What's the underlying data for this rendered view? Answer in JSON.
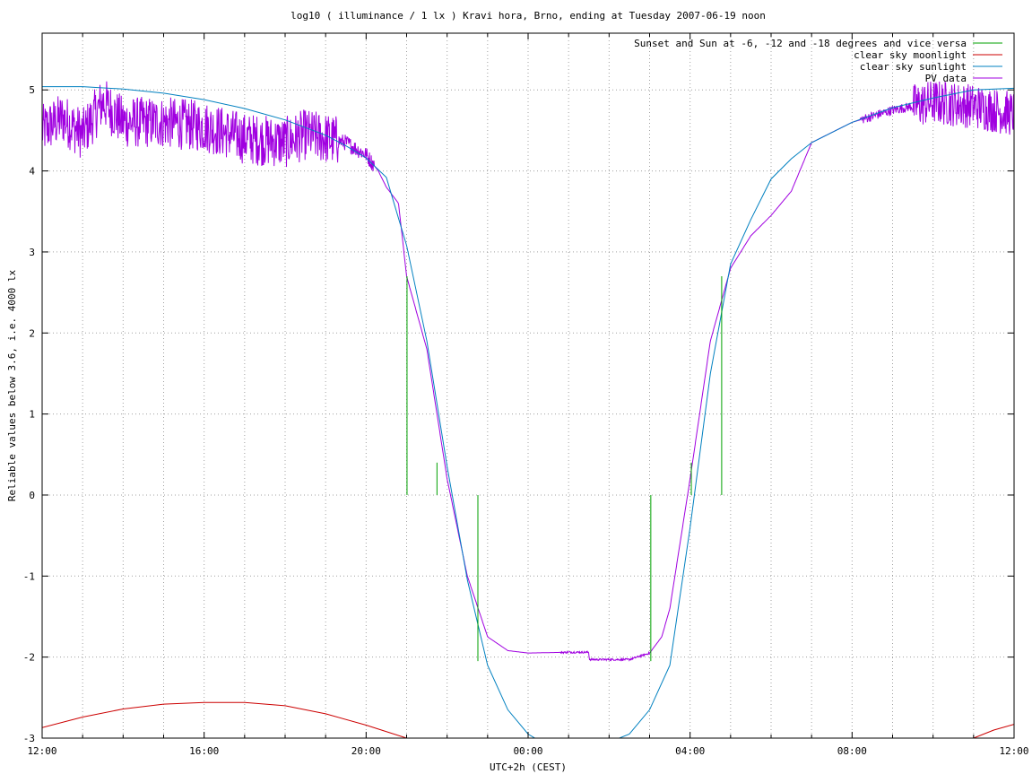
{
  "chart_data": {
    "type": "line",
    "title": "log10 ( illuminance / 1 lx ) Kravi hora, Brno, ending at Tuesday 2007-06-19 noon",
    "xlabel": "UTC+2h (CEST)",
    "ylabel": "Reliable values below 3.6, i.e. 4000 lx",
    "x_unit": "hours since 12:00 on 2007-06-18 (CEST)",
    "xlim": [
      0,
      24
    ],
    "ylim": [
      -3,
      5.7
    ],
    "x_ticks": [
      {
        "x": 0,
        "label": "12:00"
      },
      {
        "x": 4,
        "label": "16:00"
      },
      {
        "x": 8,
        "label": "20:00"
      },
      {
        "x": 12,
        "label": "00:00"
      },
      {
        "x": 16,
        "label": "04:00"
      },
      {
        "x": 20,
        "label": "08:00"
      },
      {
        "x": 24,
        "label": "12:00"
      }
    ],
    "y_ticks": [
      {
        "y": -3,
        "label": "-3"
      },
      {
        "y": -2,
        "label": "-2"
      },
      {
        "y": -1,
        "label": "-1"
      },
      {
        "y": 0,
        "label": "0"
      },
      {
        "y": 1,
        "label": "1"
      },
      {
        "y": 2,
        "label": "2"
      },
      {
        "y": 3,
        "label": "3"
      },
      {
        "y": 4,
        "label": "4"
      },
      {
        "y": 5,
        "label": "5"
      }
    ],
    "grid": true,
    "legend_position": "top-right",
    "series": [
      {
        "name": "Sunset and Sun at -6, -12 and -18 degrees and vice versa",
        "color": "#00a000",
        "style": "impulses",
        "points": [
          [
            9.01,
            2.7
          ],
          [
            9.75,
            0.4
          ],
          [
            10.76,
            -2.05
          ],
          [
            15.03,
            -2.05
          ],
          [
            16.03,
            0.4
          ],
          [
            16.78,
            2.7
          ]
        ]
      },
      {
        "name": "clear sky moonlight",
        "color": "#cc0000",
        "points": [
          [
            0.0,
            -2.87
          ],
          [
            1.0,
            -2.74
          ],
          [
            2.0,
            -2.64
          ],
          [
            3.0,
            -2.58
          ],
          [
            4.0,
            -2.56
          ],
          [
            5.0,
            -2.56
          ],
          [
            6.0,
            -2.6
          ],
          [
            7.0,
            -2.7
          ],
          [
            8.0,
            -2.84
          ],
          [
            9.0,
            -3.0
          ],
          [
            23.0,
            -3.0
          ],
          [
            23.5,
            -2.9
          ],
          [
            24.0,
            -2.83
          ]
        ]
      },
      {
        "name": "clear sky sunlight",
        "color": "#0080c0",
        "points": [
          [
            0.0,
            5.04
          ],
          [
            1.0,
            5.04
          ],
          [
            2.0,
            5.01
          ],
          [
            3.0,
            4.96
          ],
          [
            4.0,
            4.88
          ],
          [
            5.0,
            4.77
          ],
          [
            6.0,
            4.63
          ],
          [
            7.0,
            4.44
          ],
          [
            7.5,
            4.31
          ],
          [
            8.0,
            4.16
          ],
          [
            8.5,
            3.92
          ],
          [
            9.0,
            3.08
          ],
          [
            9.5,
            1.9
          ],
          [
            10.0,
            0.35
          ],
          [
            10.5,
            -1.05
          ],
          [
            11.0,
            -2.1
          ],
          [
            11.5,
            -2.65
          ],
          [
            12.0,
            -2.95
          ],
          [
            12.5,
            -3.1
          ],
          [
            13.5,
            -3.15
          ],
          [
            14.5,
            -2.95
          ],
          [
            15.0,
            -2.65
          ],
          [
            15.5,
            -2.1
          ],
          [
            16.0,
            -0.4
          ],
          [
            16.5,
            1.5
          ],
          [
            17.0,
            2.85
          ],
          [
            17.5,
            3.4
          ],
          [
            18.0,
            3.9
          ],
          [
            18.5,
            4.15
          ],
          [
            19.0,
            4.35
          ],
          [
            20.0,
            4.6
          ],
          [
            21.0,
            4.78
          ],
          [
            22.0,
            4.9
          ],
          [
            23.0,
            5.0
          ],
          [
            24.0,
            5.02
          ]
        ]
      },
      {
        "name": "PV data",
        "color": "#a000e0",
        "style": "noisy",
        "points": [
          [
            0.0,
            4.5
          ],
          [
            0.5,
            4.65
          ],
          [
            1.0,
            4.45
          ],
          [
            1.5,
            4.85
          ],
          [
            2.0,
            4.6
          ],
          [
            3.0,
            4.6
          ],
          [
            4.0,
            4.55
          ],
          [
            5.0,
            4.4
          ],
          [
            6.0,
            4.35
          ],
          [
            6.5,
            4.45
          ],
          [
            7.0,
            4.4
          ],
          [
            7.5,
            4.35
          ],
          [
            8.0,
            4.2
          ],
          [
            8.3,
            4.0
          ],
          [
            8.5,
            3.8
          ],
          [
            8.8,
            3.6
          ],
          [
            9.0,
            2.7
          ],
          [
            9.5,
            1.8
          ],
          [
            10.0,
            0.2
          ],
          [
            10.5,
            -1.0
          ],
          [
            11.0,
            -1.75
          ],
          [
            11.5,
            -1.92
          ],
          [
            12.0,
            -1.95
          ],
          [
            13.0,
            -1.94
          ],
          [
            13.5,
            -1.94
          ],
          [
            13.51,
            -2.03
          ],
          [
            14.5,
            -2.03
          ],
          [
            15.0,
            -1.95
          ],
          [
            15.3,
            -1.75
          ],
          [
            15.5,
            -1.4
          ],
          [
            16.0,
            0.2
          ],
          [
            16.5,
            1.9
          ],
          [
            17.0,
            2.8
          ],
          [
            17.5,
            3.2
          ],
          [
            18.0,
            3.45
          ],
          [
            18.5,
            3.75
          ],
          [
            19.0,
            4.35
          ],
          [
            20.0,
            4.6
          ],
          [
            21.0,
            4.75
          ],
          [
            22.0,
            4.85
          ],
          [
            23.0,
            4.8
          ],
          [
            24.0,
            4.7
          ]
        ]
      }
    ]
  }
}
